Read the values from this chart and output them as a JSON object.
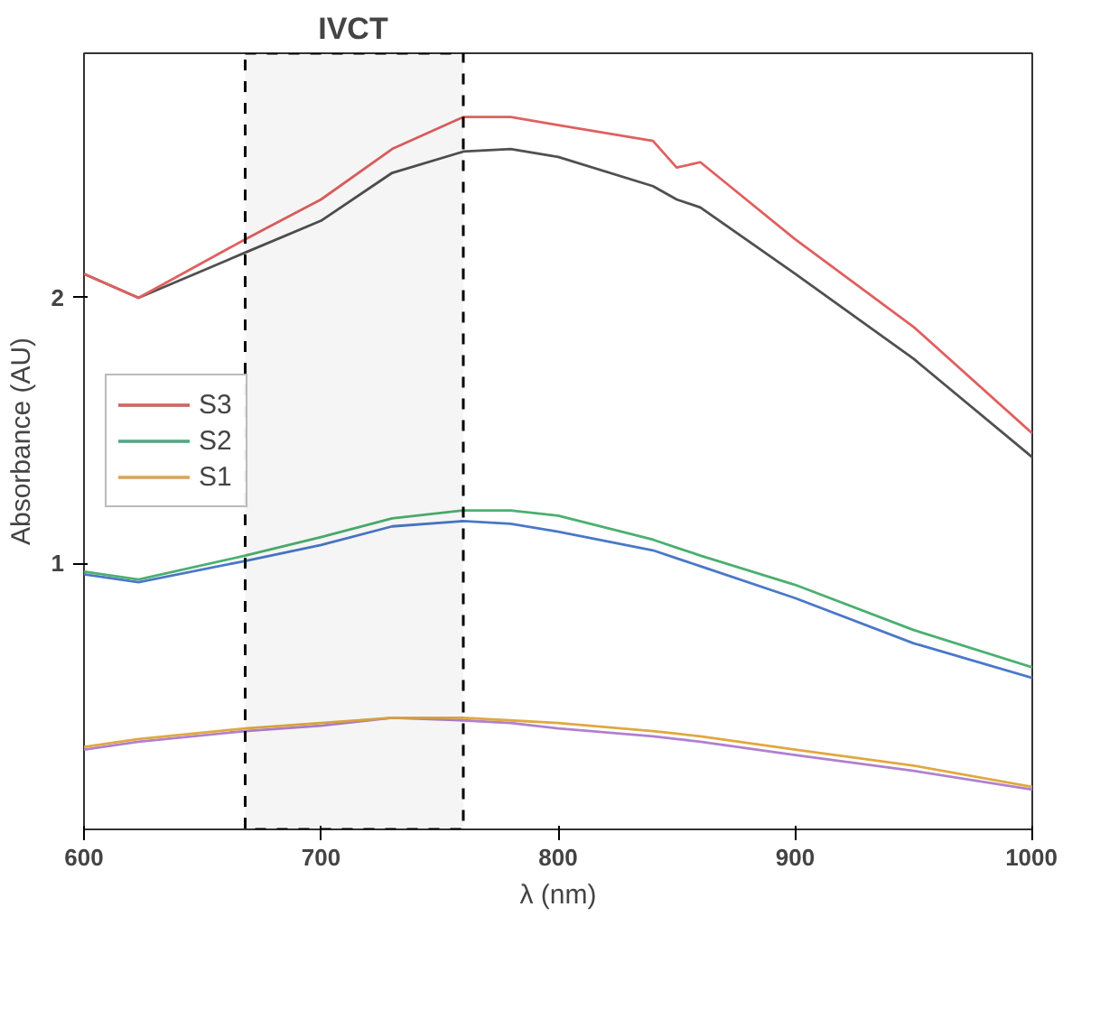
{
  "chart_data": {
    "type": "line",
    "xlabel": "λ (nm)",
    "ylabel": "Absorbance (AU)",
    "x": [
      600,
      623,
      668,
      700,
      730,
      760,
      780,
      800,
      840,
      850,
      860,
      900,
      950,
      1000
    ],
    "series": [
      {
        "color": "#505050",
        "values": [
          2.09,
          2.0,
          2.17,
          2.29,
          2.47,
          2.55,
          2.56,
          2.53,
          2.42,
          2.37,
          2.34,
          2.09,
          1.77,
          1.4
        ]
      },
      {
        "name": "S3",
        "color": "#e06060",
        "values": [
          2.09,
          2.0,
          2.22,
          2.37,
          2.56,
          2.68,
          2.68,
          2.65,
          2.59,
          2.49,
          2.51,
          2.22,
          1.89,
          1.49
        ]
      },
      {
        "color": "#4a78c8",
        "values": [
          0.96,
          0.93,
          1.01,
          1.07,
          1.14,
          1.16,
          1.15,
          1.12,
          1.05,
          1.02,
          0.99,
          0.87,
          0.7,
          0.57
        ]
      },
      {
        "name": "S2",
        "color": "#4caf70",
        "values": [
          0.97,
          0.94,
          1.03,
          1.1,
          1.17,
          1.2,
          1.2,
          1.18,
          1.09,
          1.06,
          1.03,
          0.92,
          0.75,
          0.61
        ]
      },
      {
        "color": "#b080d0",
        "values": [
          0.3,
          0.33,
          0.37,
          0.39,
          0.42,
          0.41,
          0.4,
          0.38,
          0.35,
          0.34,
          0.33,
          0.28,
          0.22,
          0.15
        ]
      },
      {
        "name": "S1",
        "color": "#e0a840",
        "values": [
          0.31,
          0.34,
          0.38,
          0.4,
          0.42,
          0.42,
          0.41,
          0.4,
          0.37,
          0.36,
          0.35,
          0.3,
          0.24,
          0.16
        ]
      }
    ],
    "xlim": [
      600,
      1000
    ],
    "xticks": [
      600,
      700,
      800,
      900,
      1000
    ],
    "ylim": [
      0,
      2.92
    ],
    "yticks": [
      1,
      2
    ],
    "bands": [
      {
        "axis": "x",
        "from": 668,
        "to": 760,
        "label": "IVCT",
        "color": "#000000"
      }
    ],
    "grid": false,
    "legend": "left",
    "marker": "none",
    "line_style": "solid"
  }
}
